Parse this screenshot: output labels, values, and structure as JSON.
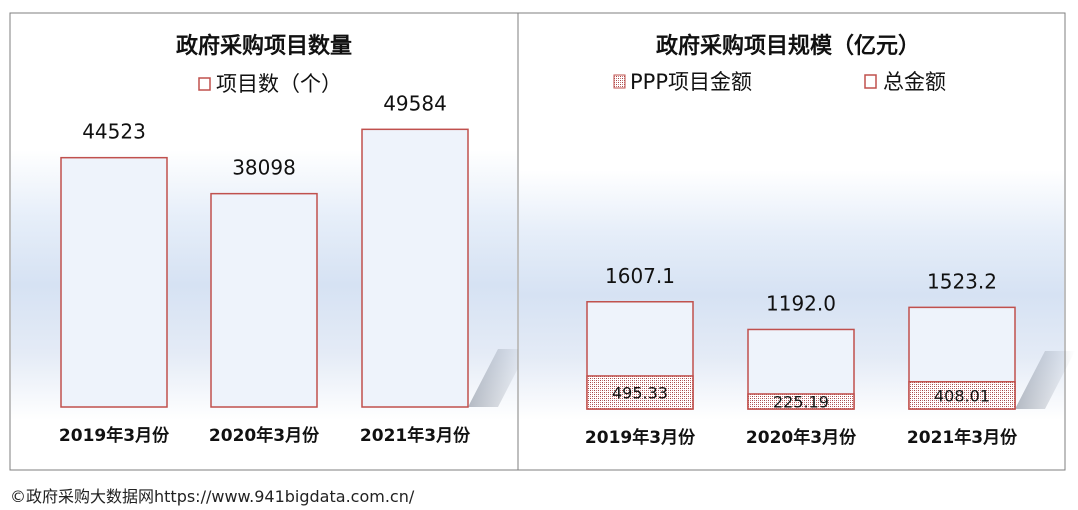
{
  "colors": {
    "bar_outline": "#c0504d",
    "bar_fill": "#eef3fb",
    "hatch": "#a04545",
    "panel_border": "#7f7f7f"
  },
  "chart_data": [
    {
      "type": "bar",
      "title": "政府采购项目数量",
      "legend": [
        "项目数（个）"
      ],
      "legend_position": "top",
      "categories": [
        "2019年3月份",
        "2020年3月份",
        "2021年3月份"
      ],
      "series": [
        {
          "name": "项目数（个）",
          "values": [
            44523,
            38098,
            49584
          ]
        }
      ],
      "value_labels": [
        "44523",
        "38098",
        "49584"
      ],
      "ylim": [
        0,
        65000
      ],
      "grid": false
    },
    {
      "type": "bar",
      "title": "政府采购项目规模（亿元）",
      "legend": [
        "PPP项目金额",
        "总金额"
      ],
      "legend_position": "top",
      "categories": [
        "2019年3月份",
        "2020年3月份",
        "2021年3月份"
      ],
      "series": [
        {
          "name": "PPP项目金额",
          "values": [
            495.33,
            225.19,
            408.01
          ]
        },
        {
          "name": "总金额",
          "values": [
            1607.1,
            1192.0,
            1523.2
          ]
        }
      ],
      "ppp_labels": [
        "495.33",
        "225.19",
        "408.01"
      ],
      "total_labels": [
        "1607.1",
        "1192.0",
        "1523.2"
      ],
      "ylim": [
        0,
        5500
      ],
      "grid": false
    }
  ],
  "footer": "©政府采购大数据网https://www.941bigdata.com.cn/"
}
